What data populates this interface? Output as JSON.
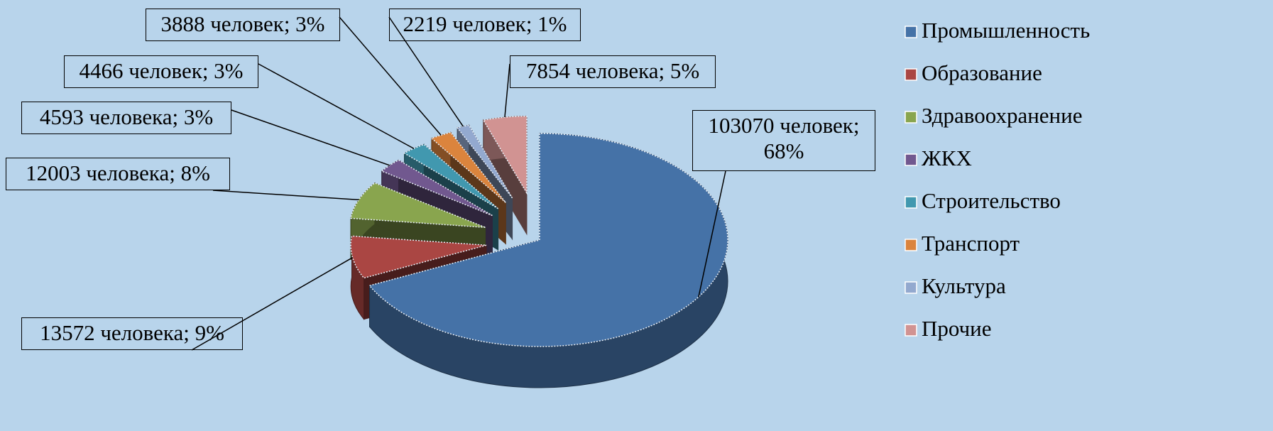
{
  "chart_data": {
    "type": "pie",
    "categories": [
      "Промышленность",
      "Образование",
      "Здравоохранение",
      "ЖКХ",
      "Строительство",
      "Транспорт",
      "Культура",
      "Прочие"
    ],
    "values": [
      103070,
      13572,
      12003,
      4593,
      4466,
      3888,
      2219,
      7854
    ],
    "value_labels": [
      "103070 человек; 68%",
      "13572 человека; 9%",
      "12003 человека; 8%",
      "4593 человека; 3%",
      "4466 человек; 3%",
      "3888 человек; 3%",
      "2219 человек; 1%",
      "7854 человека; 5%"
    ],
    "colors": [
      "#4572a7",
      "#aa4643",
      "#89a54e",
      "#71588f",
      "#4198af",
      "#db843d",
      "#93a9cf",
      "#d19392"
    ],
    "legend": "right"
  }
}
